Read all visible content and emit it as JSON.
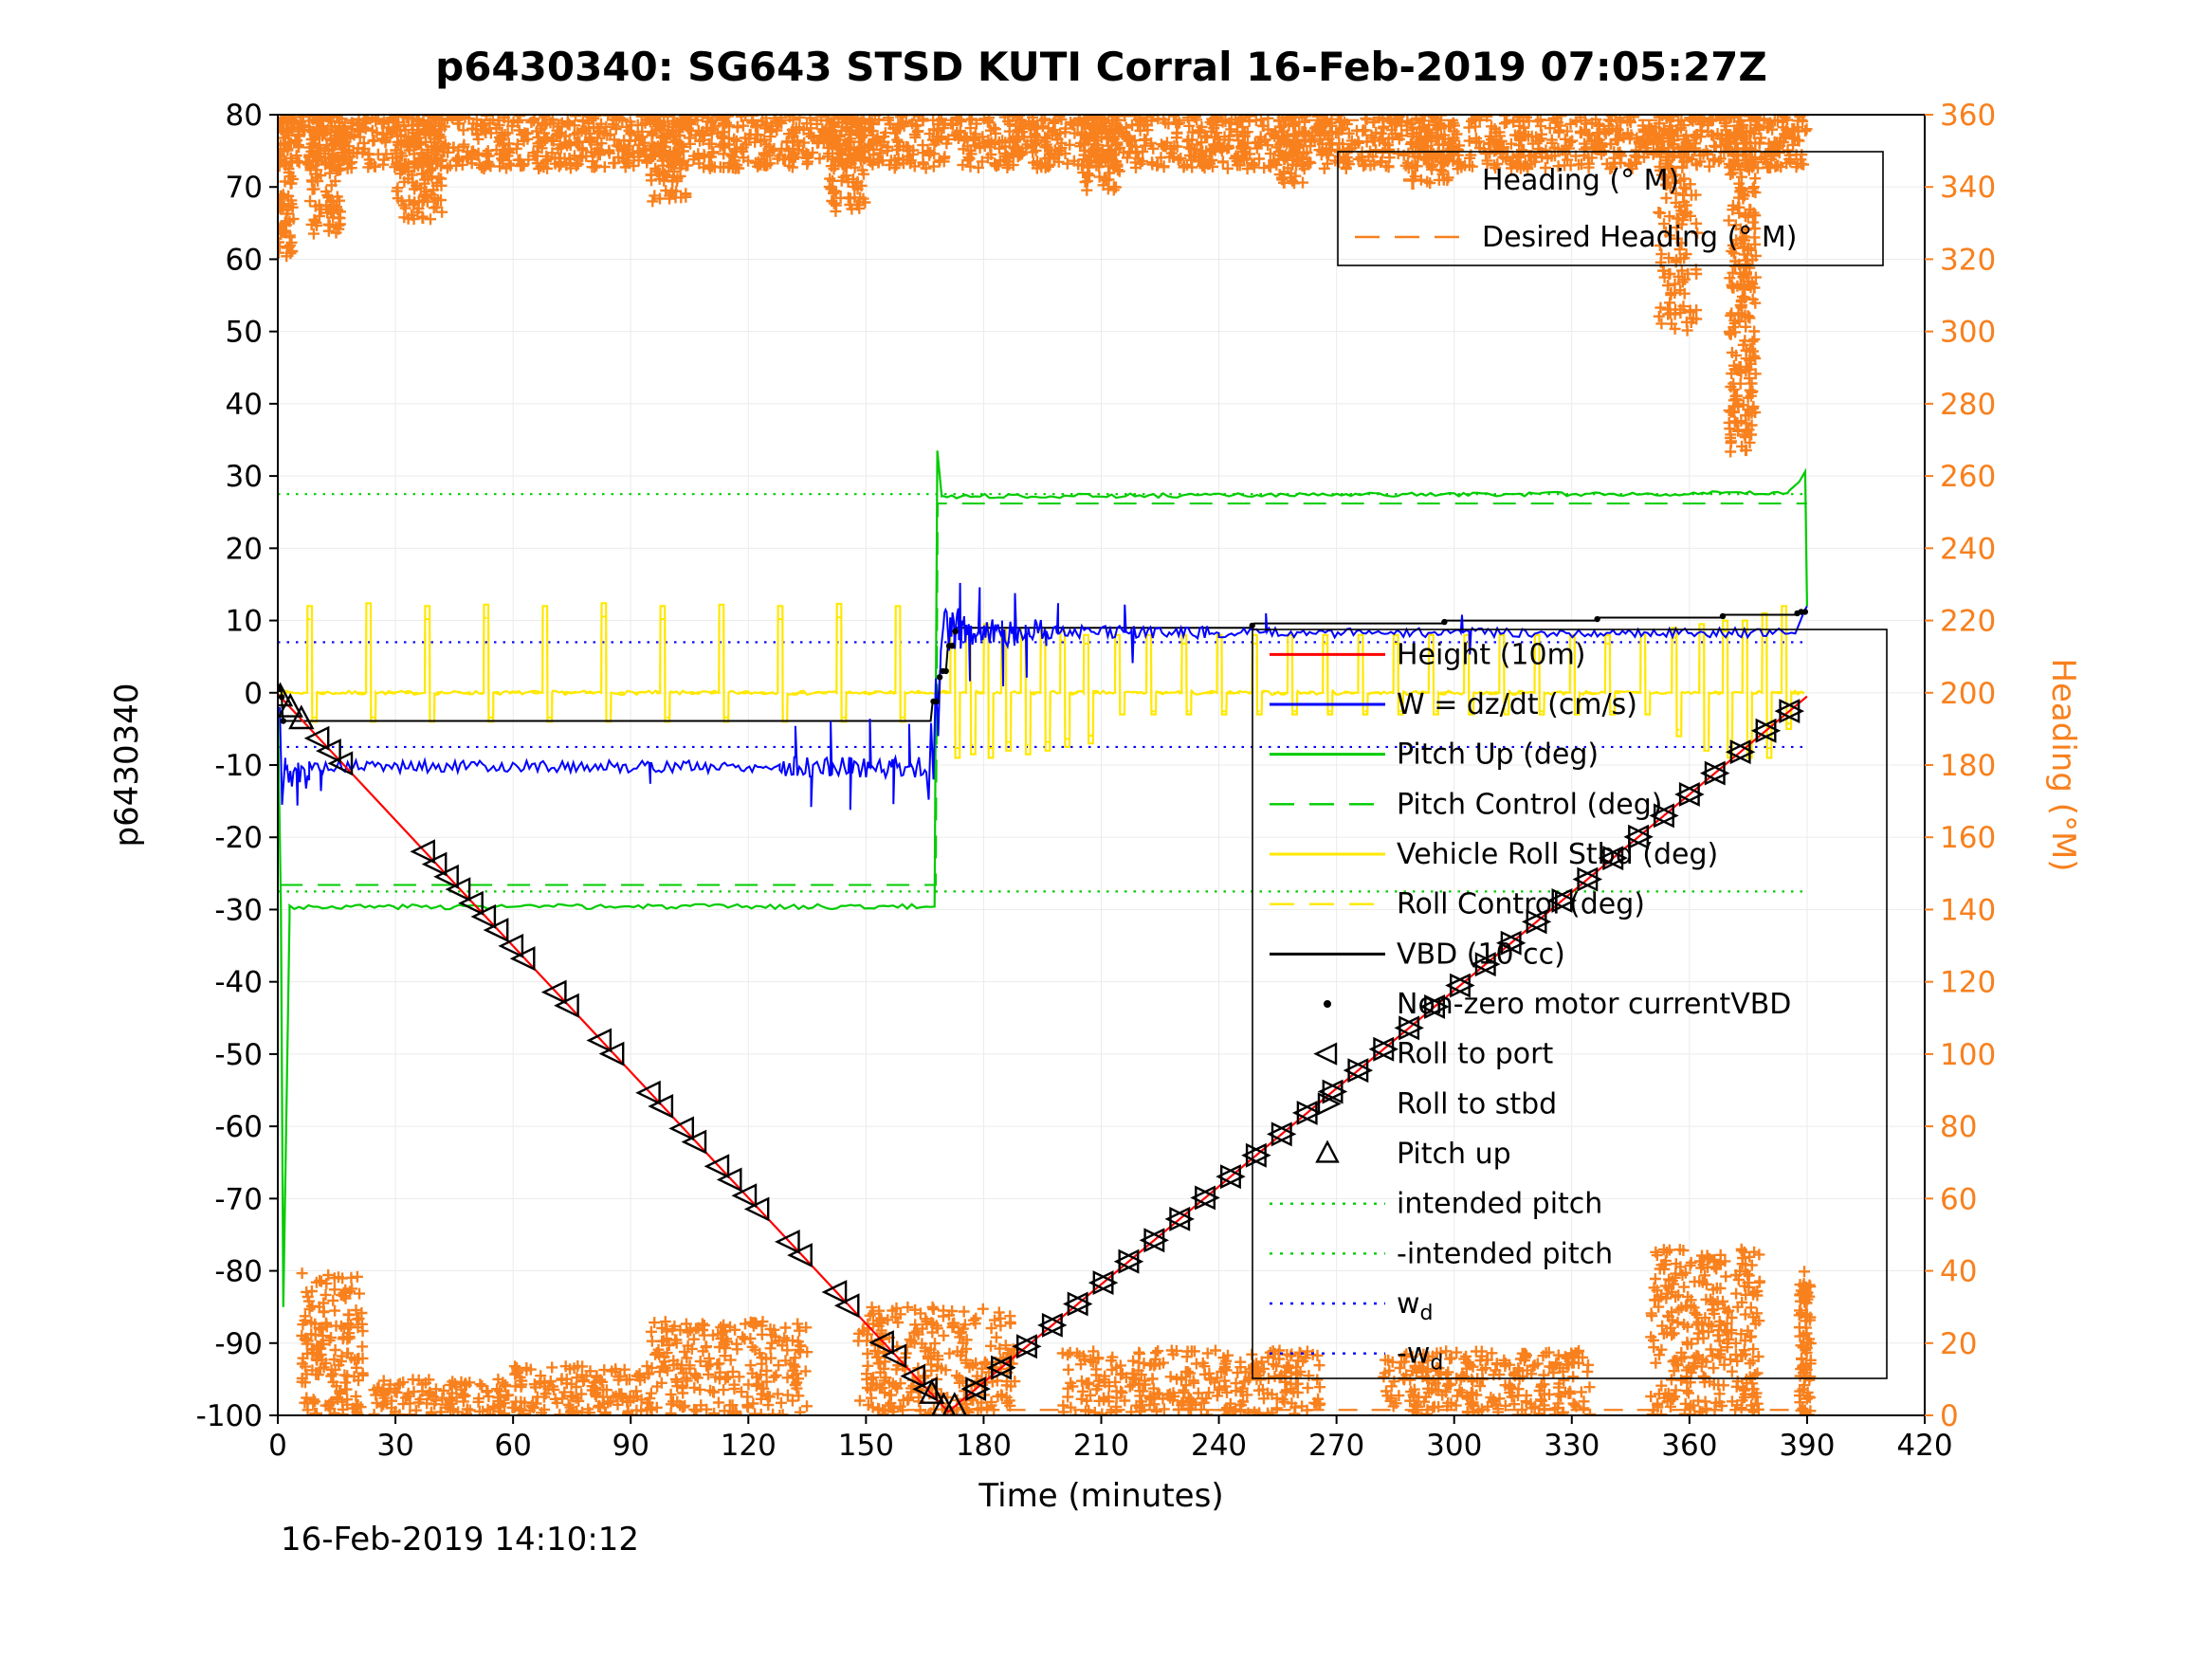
{
  "footer": "16-Feb-2019 14:10:12",
  "colors": {
    "orange": "#F8801D",
    "red": "#FF0000",
    "blue": "#0000FF",
    "green": "#00CC00",
    "yellow": "#FFE800",
    "black": "#000000",
    "grid": "#EBEBEB"
  },
  "axes": {
    "x": {
      "label": "Time (minutes)",
      "min": 0,
      "max": 420,
      "ticks": [
        0,
        30,
        60,
        90,
        120,
        150,
        180,
        210,
        240,
        270,
        300,
        330,
        360,
        390,
        420
      ]
    },
    "y_left": {
      "label": "p6430340",
      "min": -100,
      "max": 80,
      "ticks": [
        -100,
        -90,
        -80,
        -70,
        -60,
        -50,
        -40,
        -30,
        -20,
        -10,
        0,
        10,
        20,
        30,
        40,
        50,
        60,
        70,
        80
      ]
    },
    "y_right": {
      "label": "Heading (°M)",
      "min": 0,
      "max": 360,
      "color": "orange",
      "ticks": [
        0,
        20,
        40,
        60,
        80,
        100,
        120,
        140,
        160,
        180,
        200,
        220,
        240,
        260,
        280,
        300,
        320,
        340,
        360
      ]
    }
  },
  "legend_heading": {
    "items": [
      {
        "label": "Heading (° M)",
        "swatch": "plus",
        "color": "orange"
      },
      {
        "label": "Desired Heading (° M)",
        "swatch": "dashed",
        "color": "orange"
      }
    ]
  },
  "legend_main": {
    "items": [
      {
        "label": "Height (10m)",
        "swatch": "line",
        "color": "red"
      },
      {
        "label": "W = dz/dt (cm/s)",
        "swatch": "line",
        "color": "blue"
      },
      {
        "label": "Pitch Up (deg)",
        "swatch": "line",
        "color": "green"
      },
      {
        "label": "Pitch Control (deg)",
        "swatch": "dashed",
        "color": "green"
      },
      {
        "label": "Vehicle Roll Stbd (deg)",
        "swatch": "line",
        "color": "yellow"
      },
      {
        "label": "Roll Control (deg)",
        "swatch": "dashed",
        "color": "yellow"
      },
      {
        "label": "VBD (10 cc)",
        "swatch": "line",
        "color": "black"
      },
      {
        "label": "Non-zero motor currentVBD",
        "swatch": "dot",
        "color": "black"
      },
      {
        "label": "Roll to port",
        "swatch": "tri-left",
        "color": "black"
      },
      {
        "label": "Roll to stbd",
        "swatch": "tri-right",
        "color": "black"
      },
      {
        "label": "Pitch up",
        "swatch": "tri-up",
        "color": "black"
      },
      {
        "label": "intended pitch",
        "swatch": "dotted",
        "color": "green"
      },
      {
        "label": "-intended pitch",
        "swatch": "dotted",
        "color": "green"
      },
      {
        "label": "w_d",
        "swatch": "dotted",
        "color": "blue",
        "sub": true
      },
      {
        "label": "-w_d",
        "swatch": "dotted",
        "color": "blue",
        "sub": true
      }
    ]
  },
  "chart_data": {
    "type": "line",
    "title": "p6430340: SG643 STSD KUTI Corral 16-Feb-2019 07:05:27Z",
    "xlabel": "Time (minutes)",
    "ylabel_left": "p6430340",
    "ylabel_right": "Heading (°M)",
    "xlim": [
      0,
      420
    ],
    "ylim_left": [
      -100,
      80
    ],
    "ylim_right": [
      0,
      360
    ],
    "grid": true,
    "reference_lines": [
      {
        "name": "intended pitch",
        "axis": "left",
        "y": 27.5,
        "x0": 0,
        "x1": 390,
        "color": "green",
        "style": "dotted"
      },
      {
        "name": "-intended pitch",
        "axis": "left",
        "y": -27.5,
        "x0": 0,
        "x1": 390,
        "color": "green",
        "style": "dotted"
      },
      {
        "name": "w_d",
        "axis": "left",
        "y": 7,
        "x0": 0,
        "x1": 390,
        "color": "blue",
        "style": "dotted"
      },
      {
        "name": "-w_d",
        "axis": "left",
        "y": -7.5,
        "x0": 0,
        "x1": 390,
        "color": "blue",
        "style": "dotted"
      },
      {
        "name": "Desired Heading (° M)",
        "axis": "right",
        "y": 358.5,
        "x0": 0,
        "x1": 390,
        "color": "orange",
        "style": "dashed"
      },
      {
        "name": "Desired Heading (° M)",
        "axis": "right",
        "y": 1.5,
        "x0": 152,
        "x1": 390,
        "color": "orange",
        "style": "dashed"
      }
    ],
    "height": {
      "name": "Height (10m)",
      "color": "red",
      "points": [
        [
          0,
          -0.2
        ],
        [
          171,
          -99.5
        ],
        [
          390,
          -0.5
        ]
      ]
    },
    "vbd": {
      "name": "VBD (10 cc)",
      "color": "black",
      "points": [
        [
          0,
          0.5
        ],
        [
          0.9,
          0.5
        ],
        [
          1.3,
          -3.9
        ],
        [
          166.5,
          -3.9
        ],
        [
          167,
          -1.2
        ],
        [
          168.4,
          -1.2
        ],
        [
          168.9,
          3
        ],
        [
          170.4,
          3
        ],
        [
          170.9,
          6.5
        ],
        [
          172.4,
          6.5
        ],
        [
          172.9,
          9
        ],
        [
          248,
          9
        ],
        [
          249,
          9.6
        ],
        [
          297,
          9.6
        ],
        [
          298,
          10
        ],
        [
          336,
          10
        ],
        [
          337,
          10.4
        ],
        [
          368,
          10.4
        ],
        [
          369,
          10.8
        ],
        [
          387,
          10.8
        ],
        [
          388,
          11.2
        ],
        [
          390,
          11.2
        ]
      ]
    },
    "pitch": {
      "name": "Pitch Up (deg)",
      "color": "green",
      "parts": [
        {
          "pts": [
            [
              0,
              -2
            ],
            [
              0.8,
              -30
            ],
            [
              1.4,
              -85
            ],
            [
              2.2,
              -58
            ],
            [
              3,
              -31
            ]
          ]
        },
        {
          "x0": 3,
          "x1": 166.5,
          "y": -29.6,
          "amp": 0.35,
          "step": 1.2
        },
        {
          "pts": [
            [
              167.5,
              -29.6
            ],
            [
              168.2,
              33.5
            ],
            [
              169.3,
              27.2
            ]
          ]
        },
        {
          "x0": 169.5,
          "x1": 385,
          "y0": 27.2,
          "y1": 27.6,
          "amp": 0.3,
          "step": 1.2
        },
        {
          "pts": [
            [
              385.5,
              28
            ],
            [
              388,
              29.2
            ],
            [
              389.5,
              30.6
            ],
            [
              390,
              12
            ]
          ]
        }
      ]
    },
    "pitch_control": {
      "name": "Pitch Control (deg)",
      "color": "green",
      "style": "dashed",
      "points": [
        [
          0.5,
          -26.6
        ],
        [
          167.8,
          -26.6
        ],
        [
          168.3,
          26.2
        ],
        [
          390,
          26.2
        ]
      ]
    },
    "w": {
      "name": "W = dz/dt (cm/s)",
      "color": "blue",
      "parts": [
        {
          "pts": [
            [
              0.5,
              -2
            ],
            [
              1.1,
              -15.5
            ],
            [
              1.9,
              -9
            ]
          ]
        },
        {
          "x0": 2,
          "x1": 8,
          "y": -11.3,
          "amp": 2.0,
          "step": 0.4
        },
        {
          "x0": 8,
          "x1": 128,
          "y": -10.2,
          "amp": 0.85,
          "step": 0.7
        },
        {
          "x0": 128,
          "x1": 165,
          "y": -10.3,
          "amp": 1.4,
          "step": 0.5
        },
        {
          "pts": [
            [
              165.4,
              -11
            ],
            [
              166.0,
              -14.8
            ],
            [
              166.6,
              -4.2
            ],
            [
              167.2,
              -12
            ],
            [
              167.8,
              2
            ],
            [
              168.4,
              -6
            ],
            [
              169.1,
              5.8
            ],
            [
              169.8,
              9.5
            ]
          ]
        },
        {
          "x0": 170,
          "x1": 178,
          "y": 8.8,
          "amp": 3.1,
          "step": 0.3
        },
        {
          "x0": 178,
          "x1": 196,
          "y": 8.5,
          "amp": 2.1,
          "step": 0.35
        },
        {
          "x0": 196,
          "x1": 240,
          "y": 8.4,
          "amp": 0.9,
          "step": 0.6
        },
        {
          "x0": 240,
          "x1": 386,
          "y": 8.3,
          "amp": 0.65,
          "step": 0.8
        },
        {
          "pts": [
            [
              387,
              8.2
            ],
            [
              389.3,
              11.3
            ],
            [
              390,
              12
            ]
          ]
        }
      ],
      "spikes": [
        [
          5,
          -15.6
        ],
        [
          11,
          -13.6
        ],
        [
          95,
          -12.6
        ],
        [
          132,
          -4.6
        ],
        [
          136,
          -15.8
        ],
        [
          141,
          -3.9
        ],
        [
          146,
          -16.2
        ],
        [
          151,
          -3.6
        ],
        [
          157,
          -15.4
        ],
        [
          161,
          -4.3
        ],
        [
          174,
          15.2
        ],
        [
          176.5,
          1.6
        ],
        [
          179,
          14.6
        ],
        [
          185,
          0.9
        ],
        [
          188,
          13.8
        ],
        [
          191,
          2.1
        ],
        [
          199,
          12.4
        ],
        [
          216,
          12.2
        ],
        [
          218,
          4.1
        ],
        [
          252,
          11
        ],
        [
          302,
          10.8
        ],
        [
          304,
          5.3
        ]
      ]
    },
    "roll": {
      "name": "Vehicle Roll Stbd (deg)",
      "color": "yellow",
      "x0": 0.5,
      "x1": 390,
      "base_amp": 0.28,
      "control_scale": 0.85,
      "pulses": [
        [
          8,
          12,
          -4
        ],
        [
          23,
          12.4,
          -4
        ],
        [
          38,
          12,
          -4
        ],
        [
          53,
          12.2,
          -4
        ],
        [
          68,
          12,
          -4
        ],
        [
          83,
          12.4,
          -4
        ],
        [
          98,
          12,
          -4
        ],
        [
          113,
          12.2,
          -4
        ],
        [
          128,
          12,
          -4
        ],
        [
          143,
          12.3,
          -4
        ],
        [
          158,
          12,
          -4
        ],
        [
          172,
          9.5,
          -9
        ],
        [
          176,
          9,
          -8.5
        ],
        [
          180.5,
          9.5,
          -9
        ],
        [
          185,
          9,
          -8
        ],
        [
          190,
          9,
          -8.5
        ],
        [
          195,
          8.6,
          -8
        ],
        [
          200,
          8.5,
          -7.5
        ],
        [
          206,
          8,
          -7
        ],
        [
          214,
          8,
          -3
        ],
        [
          222,
          8,
          -3
        ],
        [
          231,
          8,
          -3
        ],
        [
          240,
          8,
          -3
        ],
        [
          249,
          8,
          -3
        ],
        [
          258,
          8,
          -3
        ],
        [
          267,
          8,
          -3
        ],
        [
          276,
          8,
          -3
        ],
        [
          285,
          8,
          -3
        ],
        [
          294,
          8,
          -3
        ],
        [
          303,
          8,
          -3
        ],
        [
          312,
          8,
          -3
        ],
        [
          321,
          8,
          -3
        ],
        [
          330,
          8,
          -3
        ],
        [
          339,
          8,
          -3
        ],
        [
          348,
          8,
          -3
        ],
        [
          356,
          9,
          -6
        ],
        [
          363,
          9.5,
          -8
        ],
        [
          369,
          10,
          -9
        ],
        [
          374,
          10,
          -9
        ],
        [
          379,
          11,
          -9
        ],
        [
          384,
          12,
          -5
        ]
      ]
    },
    "heading_scatter": {
      "name": "Heading (° M)",
      "marker": "plus",
      "color": "orange",
      "clusters": [
        [
          0,
          390,
          345,
          360,
          2300
        ],
        [
          0,
          4,
          320,
          360,
          80
        ],
        [
          8,
          16,
          327,
          360,
          110
        ],
        [
          30,
          42,
          331,
          360,
          130
        ],
        [
          95,
          105,
          336,
          360,
          80
        ],
        [
          140,
          150,
          333,
          360,
          90
        ],
        [
          205,
          215,
          339,
          360,
          70
        ],
        [
          255,
          262,
          341,
          360,
          50
        ],
        [
          290,
          300,
          341,
          360,
          60
        ],
        [
          352,
          362,
          300,
          360,
          130
        ],
        [
          370,
          377,
          266,
          360,
          240
        ],
        [
          6,
          22,
          0,
          40,
          170
        ],
        [
          24,
          60,
          0,
          10,
          120
        ],
        [
          60,
          95,
          0,
          14,
          150
        ],
        [
          95,
          135,
          0,
          26,
          230
        ],
        [
          148,
          188,
          0,
          30,
          270
        ],
        [
          200,
          266,
          0,
          18,
          300
        ],
        [
          282,
          335,
          0,
          18,
          260
        ],
        [
          350,
          378,
          0,
          46,
          300
        ],
        [
          388,
          391,
          0,
          40,
          80
        ]
      ]
    },
    "markers": {
      "size": 13,
      "sets": [
        {
          "shape": "up",
          "name": "Pitch up",
          "x": [
            0.6,
            3.2,
            6.0,
            166.8,
            169.8,
            172.6
          ]
        },
        {
          "shape": "left",
          "name": "Roll to port",
          "x": [
            10.5,
            13.5,
            16.5,
            37.5,
            40.5,
            43.5,
            46.5,
            49.8,
            53,
            56.2,
            60,
            63,
            71,
            74.2,
            82.5,
            85.7,
            95,
            98.2,
            103.5,
            106.7,
            112.5,
            115.7,
            119.5,
            122.7,
            130.5,
            133.7,
            142.5,
            145.7,
            154.5,
            157.7,
            162.5,
            165.6
          ]
        },
        {
          "shape": "left",
          "name": "Roll to port",
          "x": [
            178,
            184.5,
            191,
            197.5,
            204,
            210.5,
            217,
            223.5,
            230,
            236.5,
            243,
            249.5,
            256,
            262.5,
            269,
            275.5,
            282,
            288.5,
            295,
            301.5,
            308,
            314.5,
            321,
            327.5,
            334,
            340.5,
            347,
            353.5,
            360,
            366.5,
            373,
            379.5,
            385.5
          ]
        },
        {
          "shape": "right",
          "name": "Roll to stbd",
          "x": [
            178,
            184.5,
            191,
            197.5,
            204,
            210.5,
            217,
            223.5,
            230,
            236.5,
            243,
            249.5,
            256,
            262.5,
            269,
            275.5,
            282,
            288.5,
            295,
            301.5,
            308,
            314.5,
            321,
            327.5,
            334,
            340.5,
            347,
            353.5,
            360,
            366.5,
            373,
            379.5,
            385.5
          ]
        }
      ]
    },
    "motor_dots": {
      "name": "Non-zero motor currentVBD",
      "x": [
        0.6,
        1.0,
        1.4,
        167.2,
        168,
        168.8,
        169.6,
        170.4,
        171.2,
        172,
        172.8,
        248.5,
        297.5,
        336.5,
        368.5,
        387.5,
        388.5,
        389.5
      ]
    }
  }
}
